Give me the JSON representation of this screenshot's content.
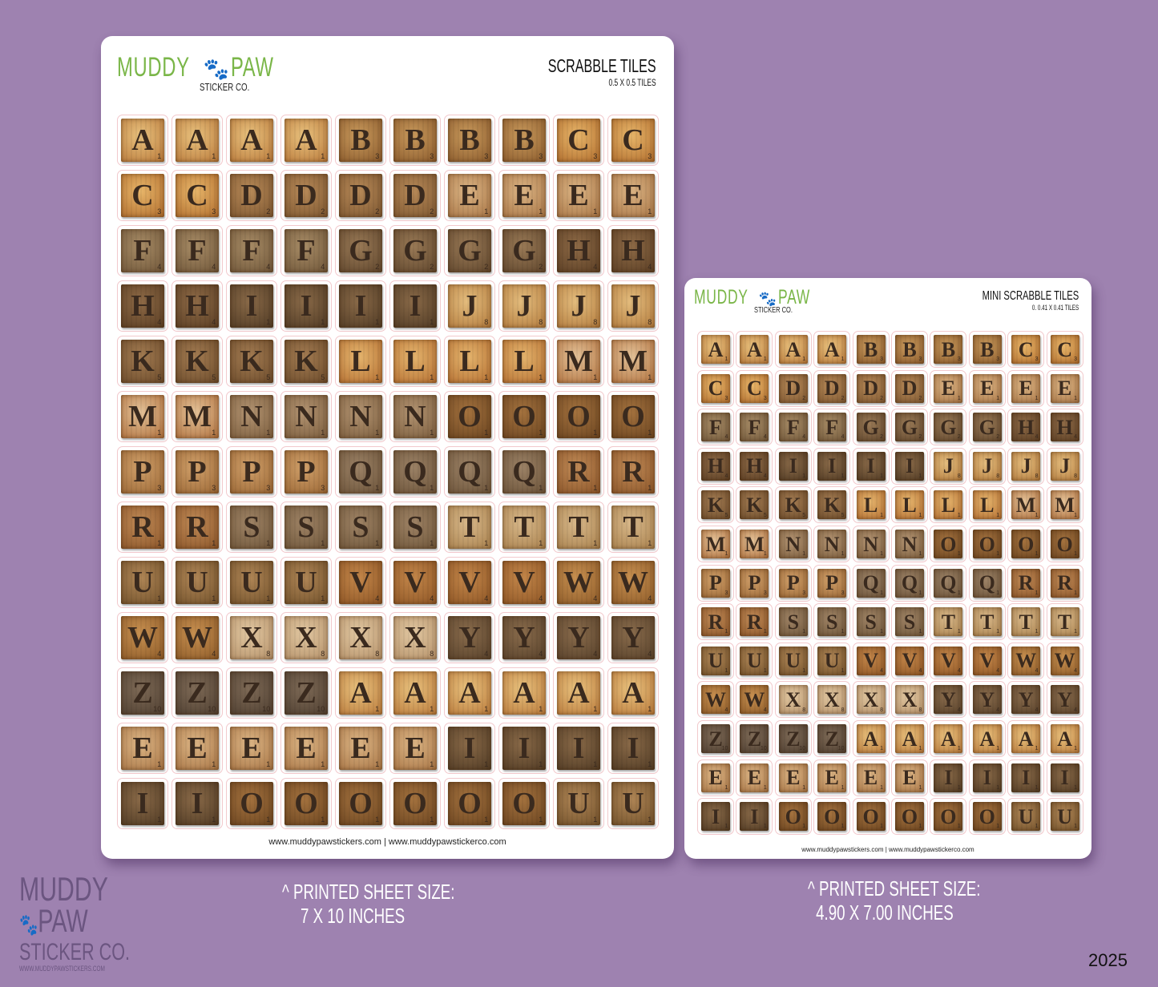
{
  "brand": {
    "name_left": "MUDDY",
    "name_right": "PAW",
    "sub": "STICKER CO.",
    "website_small": "WWW.MUDDYPAWSTICKERS.COM",
    "paw_color": "#4a2312",
    "green": "#7ab648"
  },
  "big_sheet": {
    "title": "SCRABBLE TILES",
    "subtitle": "0.5 X 0.5 TILES",
    "footer": "www.muddypawstickers.com  |  www.muddypawstickerco.com",
    "size_line1": "^ PRINTED SHEET SIZE:",
    "size_line2": "7 X 10 INCHES"
  },
  "mini_sheet": {
    "title": "MINI SCRABBLE TILES",
    "subtitle": "0. 0.41 X 0.41 TILES",
    "footer": "www.muddypawstickers.com  |  www.muddypawstickerco.com",
    "size_line1": "^ PRINTED SHEET SIZE:",
    "size_line2": "4.90 X 7.00 INCHES"
  },
  "tile_rows": [
    "AAAABBBBCC",
    "CCDDDDEEEE",
    "FFFFGGGGHH",
    "HHIIIIJJJJ",
    "KKKKLLLLMM",
    "MMNNNNOOOO",
    "PPPPQQQQRR",
    "RRSSSSTTTT",
    "UUUUVVVVWW",
    "WWXXXXYYYY",
    "ZZZZAAAAAA",
    "EEEEEEIIII",
    "IIOOOOOOUU"
  ],
  "tile_scores": {
    "A": 1,
    "B": 3,
    "C": 3,
    "D": 2,
    "E": 1,
    "F": 4,
    "G": 2,
    "H": 4,
    "I": 1,
    "J": 8,
    "K": 5,
    "L": 1,
    "M": 1,
    "N": 1,
    "O": 1,
    "P": 3,
    "Q": 1,
    "R": 1,
    "S": 1,
    "T": 1,
    "U": 1,
    "V": 4,
    "W": 4,
    "X": 8,
    "Y": 4,
    "Z": 10
  },
  "year": "2025"
}
